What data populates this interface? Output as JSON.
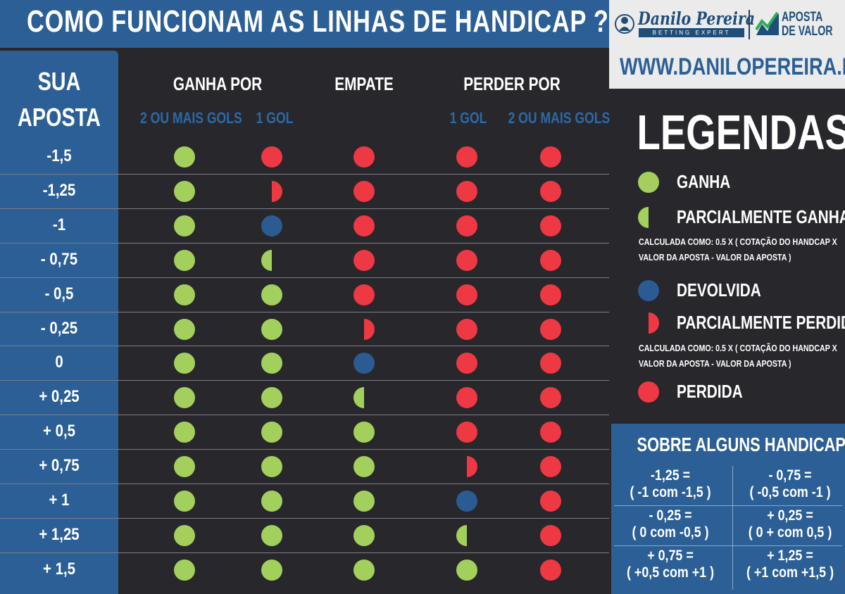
{
  "header": {
    "title": "COMO FUNCIONAM AS LINHAS DE HANDICAP ?"
  },
  "brand": {
    "danilo_name": "Danilo Pereira",
    "danilo_tagline": "BETTING EXPERT",
    "partner_line1": "APOSTA",
    "partner_line2": "DE VALOR",
    "url": "WWW.DANILOPEREIRA.NET"
  },
  "columns": {
    "sua_line1": "SUA",
    "sua_line2": "APOSTA",
    "ganha_por": "GANHA POR",
    "empate": "EMPATE",
    "perder_por": "PERDER POR",
    "sub_2ou_mais_ganha": "2 OU MAIS GOLS",
    "sub_1gol_ganha": "1 GOL",
    "sub_1gol_perde": "1 GOL",
    "sub_2ou_mais_perde": "2 OU MAIS GOLS"
  },
  "colors": {
    "ganha": "#a3d05c",
    "perdida": "#ee3843",
    "devolvida": "#2a5b92",
    "blue_bg": "#2b5f96",
    "dark_bg": "#28272c"
  },
  "rows": [
    {
      "label": "-1,5",
      "outcomes": [
        "ganha",
        "perdida",
        "perdida",
        "perdida",
        "perdida"
      ]
    },
    {
      "label": "-1,25",
      "outcomes": [
        "ganha",
        "parc_perdida",
        "perdida",
        "perdida",
        "perdida"
      ]
    },
    {
      "label": "-1",
      "outcomes": [
        "ganha",
        "devolvida",
        "perdida",
        "perdida",
        "perdida"
      ]
    },
    {
      "label": "- 0,75",
      "outcomes": [
        "ganha",
        "parc_ganha",
        "perdida",
        "perdida",
        "perdida"
      ]
    },
    {
      "label": "- 0,5",
      "outcomes": [
        "ganha",
        "ganha",
        "perdida",
        "perdida",
        "perdida"
      ]
    },
    {
      "label": "- 0,25",
      "outcomes": [
        "ganha",
        "ganha",
        "parc_perdida",
        "perdida",
        "perdida"
      ]
    },
    {
      "label": "0",
      "outcomes": [
        "ganha",
        "ganha",
        "devolvida",
        "perdida",
        "perdida"
      ]
    },
    {
      "label": "+ 0,25",
      "outcomes": [
        "ganha",
        "ganha",
        "parc_ganha",
        "perdida",
        "perdida"
      ]
    },
    {
      "label": "+ 0,5",
      "outcomes": [
        "ganha",
        "ganha",
        "ganha",
        "perdida",
        "perdida"
      ]
    },
    {
      "label": "+ 0,75",
      "outcomes": [
        "ganha",
        "ganha",
        "ganha",
        "parc_perdida",
        "perdida"
      ]
    },
    {
      "label": "+ 1",
      "outcomes": [
        "ganha",
        "ganha",
        "ganha",
        "devolvida",
        "perdida"
      ]
    },
    {
      "label": "+ 1,25",
      "outcomes": [
        "ganha",
        "ganha",
        "ganha",
        "parc_ganha",
        "perdida"
      ]
    },
    {
      "label": "+ 1,5",
      "outcomes": [
        "ganha",
        "ganha",
        "ganha",
        "ganha",
        "perdida"
      ]
    }
  ],
  "legend": {
    "title": "LEGENDAS",
    "ganha": "GANHA",
    "parc_ganha": "PARCIALMENTE GANHA",
    "parc_ganha_note1": "CALCULADA COMO: 0.5 X ( COTAÇÃO DO HANDCAP X",
    "parc_ganha_note2": "VALOR DA APOSTA - VALOR DA APOSTA )",
    "devolvida": "DEVOLVIDA",
    "parc_perdida": "PARCIALMENTE PERDIDA",
    "parc_perdida_note1": "CALCULADA COMO: 0.5 X ( COTAÇÃO DO HANDCAP X",
    "parc_perdida_note2": "VALOR DA APOSTA - VALOR DA APOSTA )",
    "perdida": "PERDIDA"
  },
  "sobre": {
    "title": "SOBRE ALGUNS HANDICAPS",
    "cells": [
      {
        "line1": "-1,25 =",
        "line2": "( -1 com -1,5 )"
      },
      {
        "line1": "- 0,75 =",
        "line2": "( -0,5 com -1 )"
      },
      {
        "line1": "- 0,25 =",
        "line2": "( 0 com -0,5 )"
      },
      {
        "line1": "+ 0,25 =",
        "line2": "( 0 + com 0,5 )"
      },
      {
        "line1": "+ 0,75 =",
        "line2": "( +0,5 com +1 )"
      },
      {
        "line1": "+ 1,25 =",
        "line2": "( +1 com +1,5 )"
      }
    ]
  }
}
